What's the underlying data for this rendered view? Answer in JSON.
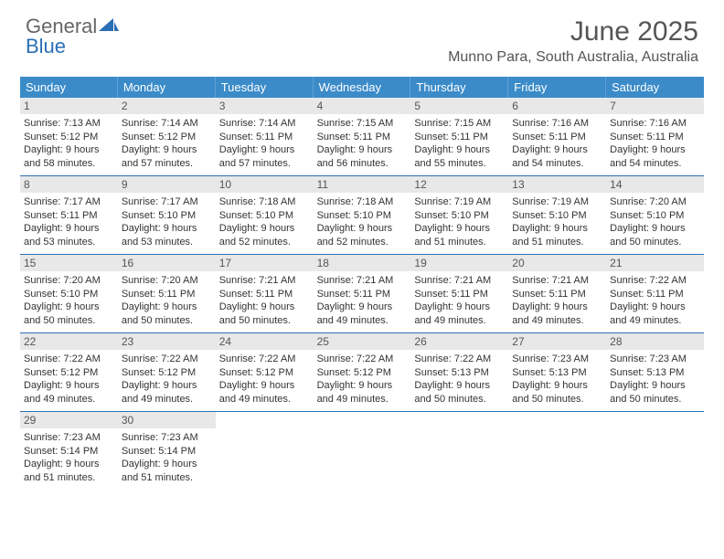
{
  "logo": {
    "line1": "General",
    "line2": "Blue"
  },
  "title": "June 2025",
  "location": "Munno Para, South Australia, Australia",
  "colors": {
    "header_bar": "#3b8bc9",
    "header_text": "#ffffff",
    "daynum_bg": "#e8e8e8",
    "daynum_text": "#555555",
    "week_divider": "#2a6fb5",
    "body_text": "#333333",
    "title_text": "#555555"
  },
  "weekdays": [
    "Sunday",
    "Monday",
    "Tuesday",
    "Wednesday",
    "Thursday",
    "Friday",
    "Saturday"
  ],
  "weeks": [
    [
      {
        "n": "1",
        "sr": "7:13 AM",
        "ss": "5:12 PM",
        "dl": "9 hours and 58 minutes."
      },
      {
        "n": "2",
        "sr": "7:14 AM",
        "ss": "5:12 PM",
        "dl": "9 hours and 57 minutes."
      },
      {
        "n": "3",
        "sr": "7:14 AM",
        "ss": "5:11 PM",
        "dl": "9 hours and 57 minutes."
      },
      {
        "n": "4",
        "sr": "7:15 AM",
        "ss": "5:11 PM",
        "dl": "9 hours and 56 minutes."
      },
      {
        "n": "5",
        "sr": "7:15 AM",
        "ss": "5:11 PM",
        "dl": "9 hours and 55 minutes."
      },
      {
        "n": "6",
        "sr": "7:16 AM",
        "ss": "5:11 PM",
        "dl": "9 hours and 54 minutes."
      },
      {
        "n": "7",
        "sr": "7:16 AM",
        "ss": "5:11 PM",
        "dl": "9 hours and 54 minutes."
      }
    ],
    [
      {
        "n": "8",
        "sr": "7:17 AM",
        "ss": "5:11 PM",
        "dl": "9 hours and 53 minutes."
      },
      {
        "n": "9",
        "sr": "7:17 AM",
        "ss": "5:10 PM",
        "dl": "9 hours and 53 minutes."
      },
      {
        "n": "10",
        "sr": "7:18 AM",
        "ss": "5:10 PM",
        "dl": "9 hours and 52 minutes."
      },
      {
        "n": "11",
        "sr": "7:18 AM",
        "ss": "5:10 PM",
        "dl": "9 hours and 52 minutes."
      },
      {
        "n": "12",
        "sr": "7:19 AM",
        "ss": "5:10 PM",
        "dl": "9 hours and 51 minutes."
      },
      {
        "n": "13",
        "sr": "7:19 AM",
        "ss": "5:10 PM",
        "dl": "9 hours and 51 minutes."
      },
      {
        "n": "14",
        "sr": "7:20 AM",
        "ss": "5:10 PM",
        "dl": "9 hours and 50 minutes."
      }
    ],
    [
      {
        "n": "15",
        "sr": "7:20 AM",
        "ss": "5:10 PM",
        "dl": "9 hours and 50 minutes."
      },
      {
        "n": "16",
        "sr": "7:20 AM",
        "ss": "5:11 PM",
        "dl": "9 hours and 50 minutes."
      },
      {
        "n": "17",
        "sr": "7:21 AM",
        "ss": "5:11 PM",
        "dl": "9 hours and 50 minutes."
      },
      {
        "n": "18",
        "sr": "7:21 AM",
        "ss": "5:11 PM",
        "dl": "9 hours and 49 minutes."
      },
      {
        "n": "19",
        "sr": "7:21 AM",
        "ss": "5:11 PM",
        "dl": "9 hours and 49 minutes."
      },
      {
        "n": "20",
        "sr": "7:21 AM",
        "ss": "5:11 PM",
        "dl": "9 hours and 49 minutes."
      },
      {
        "n": "21",
        "sr": "7:22 AM",
        "ss": "5:11 PM",
        "dl": "9 hours and 49 minutes."
      }
    ],
    [
      {
        "n": "22",
        "sr": "7:22 AM",
        "ss": "5:12 PM",
        "dl": "9 hours and 49 minutes."
      },
      {
        "n": "23",
        "sr": "7:22 AM",
        "ss": "5:12 PM",
        "dl": "9 hours and 49 minutes."
      },
      {
        "n": "24",
        "sr": "7:22 AM",
        "ss": "5:12 PM",
        "dl": "9 hours and 49 minutes."
      },
      {
        "n": "25",
        "sr": "7:22 AM",
        "ss": "5:12 PM",
        "dl": "9 hours and 49 minutes."
      },
      {
        "n": "26",
        "sr": "7:22 AM",
        "ss": "5:13 PM",
        "dl": "9 hours and 50 minutes."
      },
      {
        "n": "27",
        "sr": "7:23 AM",
        "ss": "5:13 PM",
        "dl": "9 hours and 50 minutes."
      },
      {
        "n": "28",
        "sr": "7:23 AM",
        "ss": "5:13 PM",
        "dl": "9 hours and 50 minutes."
      }
    ],
    [
      {
        "n": "29",
        "sr": "7:23 AM",
        "ss": "5:14 PM",
        "dl": "9 hours and 51 minutes."
      },
      {
        "n": "30",
        "sr": "7:23 AM",
        "ss": "5:14 PM",
        "dl": "9 hours and 51 minutes."
      },
      null,
      null,
      null,
      null,
      null
    ]
  ],
  "labels": {
    "sunrise": "Sunrise:",
    "sunset": "Sunset:",
    "daylight": "Daylight:"
  }
}
